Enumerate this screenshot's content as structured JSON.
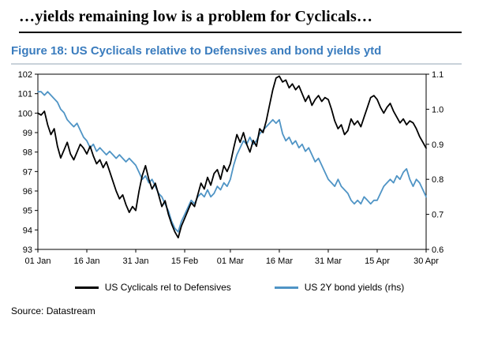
{
  "page": {
    "heading": "…yields remaining low is a problem for Cyclicals…",
    "figure_title": "Figure 18: US Cyclicals relative to Defensives and bond yields ytd",
    "source": "Source: Datastream"
  },
  "colors": {
    "heading": "#000000",
    "figure_title": "#3a7cbe",
    "rule_dark": "#000000",
    "rule_light": "#c9d2da",
    "axis": "#000000",
    "series_black": "#000000",
    "series_blue": "#4f94c5"
  },
  "legend": [
    {
      "label": "US Cyclicals rel to Defensives"
    },
    {
      "label": "US 2Y bond yields (rhs)"
    }
  ],
  "chart_data": {
    "type": "line",
    "title": "US Cyclicals relative to Defensives and bond yields ytd",
    "x_unit": "days since 01 Jan",
    "xlim": [
      0,
      119
    ],
    "x_ticks": [
      {
        "pos": 0,
        "label": "01 Jan"
      },
      {
        "pos": 15,
        "label": "16 Jan"
      },
      {
        "pos": 30,
        "label": "31 Jan"
      },
      {
        "pos": 45,
        "label": "15 Feb"
      },
      {
        "pos": 59,
        "label": "01 Mar"
      },
      {
        "pos": 74,
        "label": "16 Mar"
      },
      {
        "pos": 89,
        "label": "31 Mar"
      },
      {
        "pos": 104,
        "label": "15 Apr"
      },
      {
        "pos": 119,
        "label": "30 Apr"
      }
    ],
    "left_axis": {
      "range": [
        93,
        102
      ],
      "ticks": [
        102,
        101,
        100,
        99,
        98,
        97,
        96,
        95,
        94,
        93
      ]
    },
    "right_axis": {
      "range": [
        0.6,
        1.1
      ],
      "ticks": [
        1.1,
        1.0,
        0.9,
        0.8,
        0.7,
        0.6
      ]
    },
    "grid": false,
    "legend_position": "bottom",
    "series": [
      {
        "name": "US Cyclicals rel to Defensives",
        "axis": "left",
        "color": "#000000",
        "values": [
          100.0,
          99.9,
          100.1,
          99.4,
          98.9,
          99.2,
          98.3,
          97.7,
          98.1,
          98.5,
          97.9,
          97.6,
          98.0,
          98.4,
          98.2,
          97.9,
          98.3,
          97.8,
          97.4,
          97.6,
          97.2,
          97.5,
          97.0,
          96.5,
          96.0,
          95.6,
          95.8,
          95.3,
          94.9,
          95.2,
          95.0,
          96.0,
          96.8,
          97.3,
          96.6,
          96.1,
          96.4,
          95.8,
          95.2,
          95.5,
          94.8,
          94.3,
          93.9,
          93.6,
          94.2,
          94.6,
          95.0,
          95.4,
          95.2,
          95.8,
          96.4,
          96.1,
          96.7,
          96.3,
          96.9,
          97.1,
          96.6,
          97.3,
          97.0,
          97.4,
          98.2,
          98.9,
          98.5,
          99.0,
          98.4,
          98.0,
          98.6,
          98.3,
          99.2,
          99.0,
          99.6,
          100.4,
          101.2,
          101.8,
          101.9,
          101.6,
          101.7,
          101.3,
          101.5,
          101.2,
          101.4,
          101.0,
          100.6,
          100.9,
          100.4,
          100.7,
          100.9,
          100.6,
          100.8,
          100.7,
          100.2,
          99.6,
          99.2,
          99.4,
          98.9,
          99.1,
          99.7,
          99.4,
          99.6,
          99.3,
          99.8,
          100.3,
          100.8,
          100.9,
          100.7,
          100.3,
          100.0,
          100.3,
          100.5,
          100.1,
          99.8,
          99.5,
          99.7,
          99.4,
          99.6,
          99.5,
          99.2,
          98.8,
          98.5,
          98.2
        ]
      },
      {
        "name": "US 2Y bond yields (rhs)",
        "axis": "right",
        "color": "#4f94c5",
        "values": [
          1.05,
          1.05,
          1.04,
          1.05,
          1.04,
          1.03,
          1.02,
          1.0,
          0.99,
          0.97,
          0.96,
          0.95,
          0.96,
          0.94,
          0.92,
          0.91,
          0.89,
          0.9,
          0.88,
          0.89,
          0.88,
          0.87,
          0.88,
          0.87,
          0.86,
          0.87,
          0.86,
          0.85,
          0.86,
          0.85,
          0.84,
          0.82,
          0.8,
          0.81,
          0.79,
          0.8,
          0.78,
          0.76,
          0.75,
          0.73,
          0.71,
          0.68,
          0.66,
          0.65,
          0.68,
          0.7,
          0.72,
          0.74,
          0.73,
          0.75,
          0.76,
          0.75,
          0.77,
          0.75,
          0.76,
          0.78,
          0.77,
          0.79,
          0.78,
          0.8,
          0.84,
          0.87,
          0.89,
          0.91,
          0.9,
          0.92,
          0.9,
          0.91,
          0.93,
          0.94,
          0.95,
          0.96,
          0.97,
          0.96,
          0.97,
          0.93,
          0.91,
          0.92,
          0.9,
          0.91,
          0.89,
          0.9,
          0.88,
          0.89,
          0.87,
          0.85,
          0.86,
          0.84,
          0.82,
          0.8,
          0.79,
          0.78,
          0.8,
          0.78,
          0.77,
          0.76,
          0.74,
          0.73,
          0.74,
          0.73,
          0.75,
          0.74,
          0.73,
          0.74,
          0.74,
          0.76,
          0.78,
          0.79,
          0.8,
          0.79,
          0.81,
          0.8,
          0.82,
          0.83,
          0.8,
          0.78,
          0.8,
          0.79,
          0.77,
          0.75
        ]
      }
    ]
  }
}
